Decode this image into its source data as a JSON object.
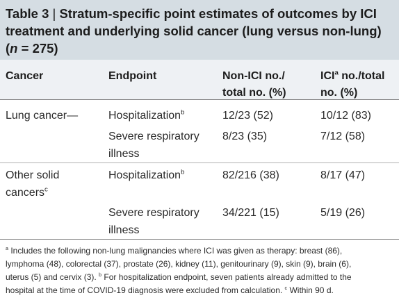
{
  "title": {
    "label": "Table 3",
    "separator": "|",
    "line1": "Stratum-specific point estimates of outcomes by ICI",
    "line2": "treatment and underlying solid cancer (lung versus non-lung)",
    "line3_open": "(",
    "line3_n": "n",
    "line3_rest": " = 275)"
  },
  "headers": {
    "cancer": "Cancer",
    "endpoint": "Endpoint",
    "non_ici_line1": "Non-ICI no./",
    "non_ici_line2": "total no. (%)",
    "ici_prefix": "ICI",
    "ici_sup": "a",
    "ici_line1_rest": " no./total",
    "ici_line2": "no. (%)"
  },
  "rows": [
    {
      "cancer_line1": "Lung cancer—",
      "endpoint_line1": "Hospitalization",
      "endpoint_sup": "b",
      "non_ici": "12/23 (52)",
      "ici": "10/12 (83)"
    },
    {
      "endpoint_line1": "Severe respiratory",
      "endpoint_line2": "illness",
      "non_ici": "8/23 (35)",
      "ici": "7/12 (58)"
    },
    {
      "cancer_line1": "Other solid",
      "cancer_line2": "cancers",
      "cancer_sup": "c",
      "endpoint_line1": "Hospitalization",
      "endpoint_sup": "b",
      "non_ici": "82/216 (38)",
      "ici": "8/17 (47)"
    },
    {
      "endpoint_line1": "Severe respiratory",
      "endpoint_line2": "illness",
      "non_ici": "34/221 (15)",
      "ici": "5/19 (26)"
    }
  ],
  "footnotes": {
    "sup_a": "a",
    "line1": " Includes the following non-lung malignancies where ICI was given as therapy: breast (86),",
    "line2": "lymphoma (48), colorectal (37), prostate (26), kidney (11), genitourinary (9), skin (9), brain (6),",
    "line3_part1": "uterus (5) and cervix (3). ",
    "sup_b": "b",
    "line3_part2": " For hospitalization endpoint, seven patients already admitted to the",
    "line4_part1": "hospital at the time of COVID-19 diagnosis were excluded from calculation. ",
    "sup_c": "c",
    "line4_part2": " Within 90 d."
  }
}
